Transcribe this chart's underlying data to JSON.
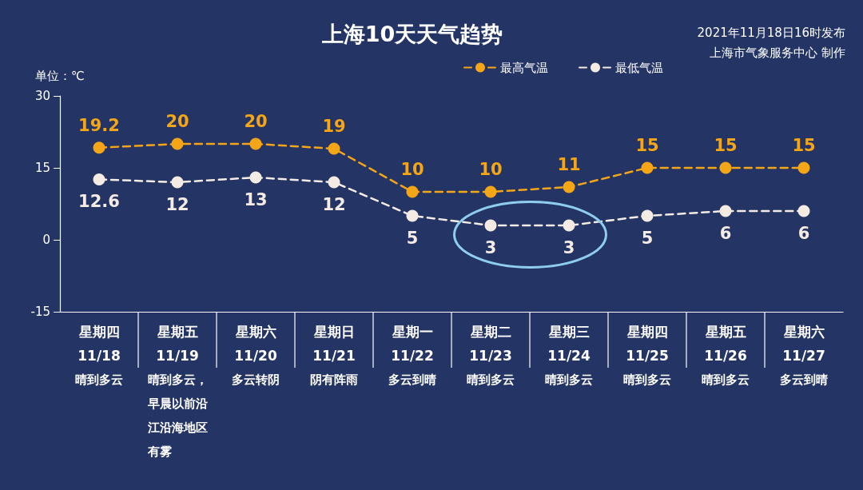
{
  "chart_data": {
    "type": "line",
    "title": "上海10天天气趋势",
    "ylabel": "单位：℃",
    "annotations": [
      "2021年11月18日16时发布",
      "上海市气象服务中心 制作"
    ],
    "categories": [
      "星期四\n11/18\n晴到多云",
      "星期五\n11/19\n晴到多云，早晨以前沿江沿海地区有雾",
      "星期六\n11/20\n多云转阴",
      "星期日\n11/21\n阴有阵雨",
      "星期一\n11/22\n多云到晴",
      "星期二\n11/23\n晴到多云",
      "星期三\n11/24\n晴到多云",
      "星期四\n11/25\n晴到多云",
      "星期五\n11/26\n晴到多云",
      "星期六\n11/27\n多云到晴"
    ],
    "series": [
      {
        "name": "最高气温",
        "color": "#f5a617",
        "values": [
          19.2,
          20,
          20,
          19,
          10,
          10,
          11,
          15,
          15,
          15
        ]
      },
      {
        "name": "最低气温",
        "color": "#f4ece4",
        "values": [
          12.6,
          12,
          13,
          12,
          5,
          3,
          3,
          5,
          6,
          6
        ]
      }
    ],
    "ylim": [
      -15,
      30
    ],
    "yticks": [
      -15,
      0,
      15,
      30
    ],
    "legend": "top right",
    "marker": "circle",
    "line_style": "dashed",
    "data_labels": true
  }
}
